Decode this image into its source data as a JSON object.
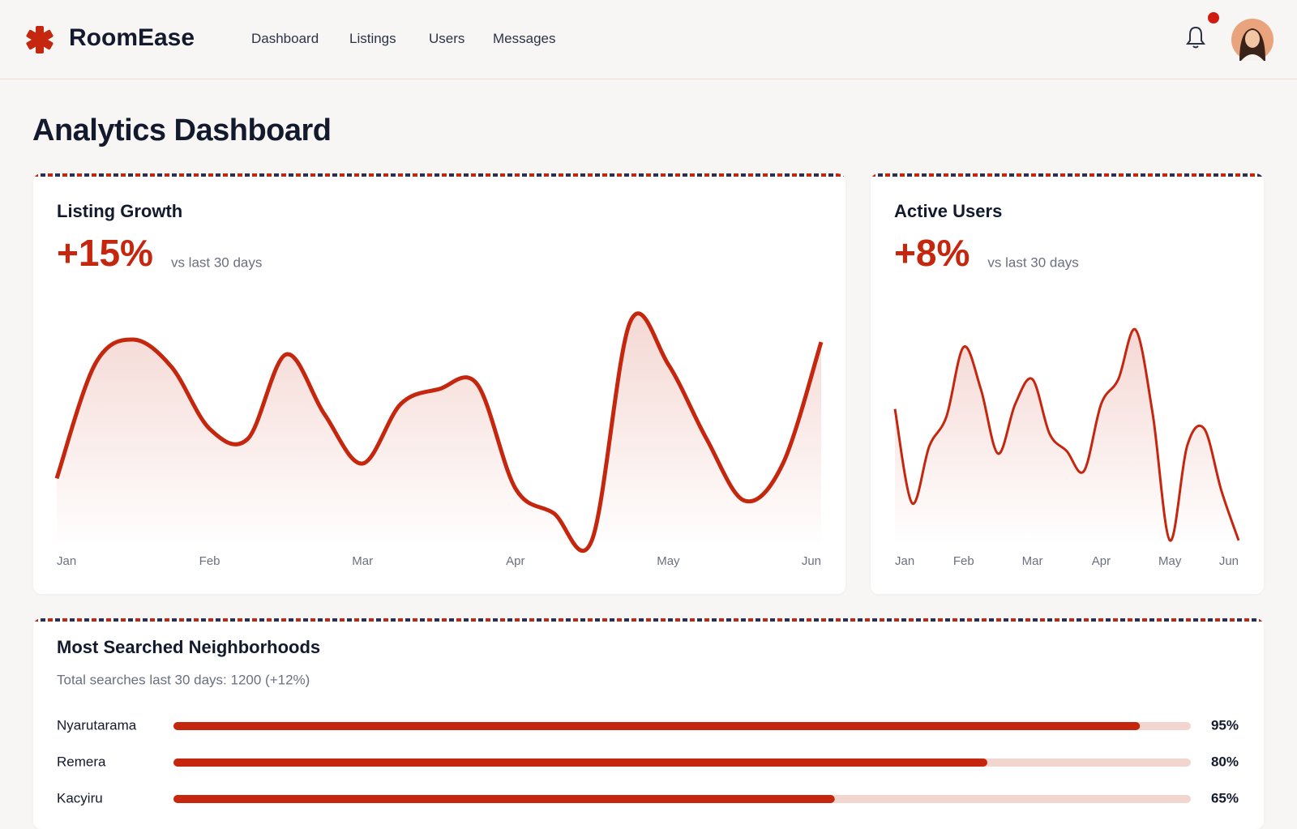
{
  "header": {
    "brand": "RoomEase",
    "nav": [
      "Dashboard",
      "Listings",
      "Users",
      "Messages"
    ]
  },
  "page_title": "Analytics Dashboard",
  "chart_data": [
    {
      "type": "line",
      "title": "Listing Growth",
      "headline": "+15%",
      "headline_note": "vs last 30 days",
      "color": "#c4260e",
      "categories": [
        "Jan",
        null,
        null,
        null,
        "Feb",
        null,
        null,
        null,
        "Mar",
        null,
        null,
        null,
        "Apr",
        null,
        null,
        null,
        "May",
        null,
        null,
        null,
        "Jun"
      ],
      "values": [
        27,
        73,
        83,
        72,
        47,
        43,
        77,
        53,
        33,
        57,
        63,
        65,
        23,
        13,
        2,
        90,
        73,
        43,
        18,
        33,
        82
      ],
      "ylim": [
        0,
        100
      ]
    },
    {
      "type": "line",
      "title": "Active Users",
      "headline": "+8%",
      "headline_note": "vs last 30 days",
      "color": "#c4260e",
      "categories": [
        "Jan",
        null,
        null,
        null,
        "Feb",
        null,
        null,
        null,
        "Mar",
        null,
        null,
        null,
        "Apr",
        null,
        null,
        null,
        "May",
        null,
        null,
        null,
        "Jun"
      ],
      "values": [
        55,
        17,
        40,
        52,
        80,
        63,
        37,
        57,
        67,
        45,
        38,
        30,
        57,
        67,
        87,
        53,
        2,
        40,
        47,
        22,
        2
      ],
      "ylim": [
        0,
        100
      ]
    },
    {
      "type": "bar",
      "orientation": "horizontal",
      "title": "Most Searched Neighborhoods",
      "subtitle": "Total searches last 30 days: 1200 (+12%)",
      "color": "#c4260e",
      "track_color": "#f3d5cf",
      "categories": [
        "Nyarutarama",
        "Remera",
        "Kacyiru"
      ],
      "values": [
        95,
        80,
        65
      ],
      "value_labels": [
        "95%",
        "80%",
        "65%"
      ],
      "xlim": [
        0,
        100
      ]
    }
  ]
}
